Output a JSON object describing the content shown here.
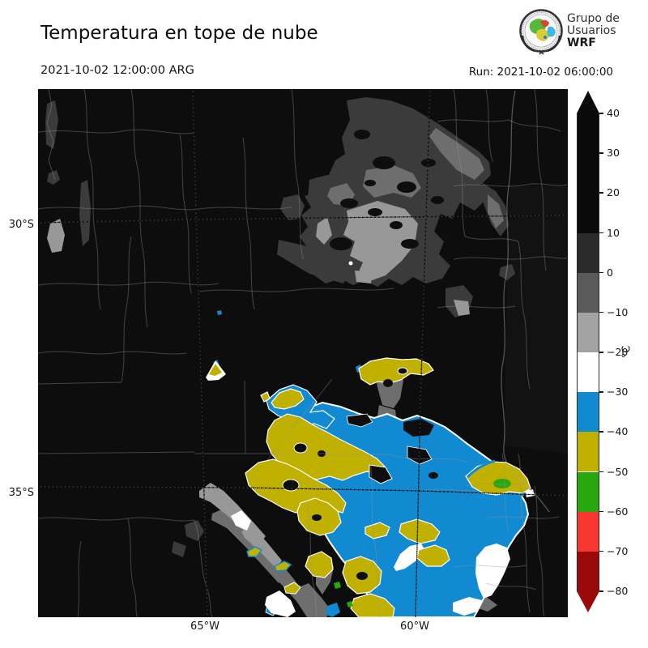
{
  "header": {
    "title": "Temperatura en tope de nube",
    "valid_time": "2021-10-02 12:00:00 ARG",
    "run_label": "Run: 2021-10-02 06:00:00"
  },
  "logo": {
    "line1": "Grupo de",
    "line2": "Usuarios",
    "line3": "WRF"
  },
  "map": {
    "lat_labels": [
      "30°S",
      "35°S"
    ],
    "lon_labels": [
      "65°W",
      "60°W"
    ],
    "background_color": "#0d0d0d",
    "palette": {
      "black_10_to_40": "#0a0a0a",
      "darkgray_0_to_10": "#3b3b3b",
      "midgray_m10_to_0": "#6e6e6e",
      "lightgray_m20_to_m10": "#989898",
      "white_m30_to_m20": "#ffffff",
      "blue_m40_to_m30": "#118ad2",
      "yellow_m50_to_m40": "#c0b000",
      "green_m60_to_m50": "#28a80e",
      "red_m70_to_m60": "#f93730",
      "darkred_m80_to_m70": "#9b0a0a"
    }
  },
  "colorbar": {
    "unit": "°C",
    "max": 40,
    "min": -80,
    "ticks": [
      {
        "value": 40,
        "label": "40"
      },
      {
        "value": 30,
        "label": "30"
      },
      {
        "value": 20,
        "label": "20"
      },
      {
        "value": 10,
        "label": "10"
      },
      {
        "value": 0,
        "label": "0"
      },
      {
        "value": -10,
        "label": "−10"
      },
      {
        "value": -20,
        "label": "−20"
      },
      {
        "value": -30,
        "label": "−30"
      },
      {
        "value": -40,
        "label": "−40"
      },
      {
        "value": -50,
        "label": "−50"
      },
      {
        "value": -60,
        "label": "−60"
      },
      {
        "value": -70,
        "label": "−70"
      },
      {
        "value": -80,
        "label": "−80"
      }
    ],
    "segments": [
      {
        "span": [
          40,
          10
        ],
        "color": "#0a0a0a"
      },
      {
        "span": [
          10,
          0
        ],
        "color": "#2b2b2b"
      },
      {
        "span": [
          0,
          -10
        ],
        "color": "#5a5a5a"
      },
      {
        "span": [
          -10,
          -20
        ],
        "color": "#a2a2a2"
      },
      {
        "span": [
          -20,
          -30
        ],
        "color": "#ffffff"
      },
      {
        "span": [
          -30,
          -40
        ],
        "color": "#118ad2"
      },
      {
        "span": [
          -40,
          -50
        ],
        "color": "#c0b000"
      },
      {
        "span": [
          -50,
          -60
        ],
        "color": "#28a80e"
      },
      {
        "span": [
          -60,
          -70
        ],
        "color": "#f93730"
      },
      {
        "span": [
          -70,
          -80
        ],
        "color": "#9b0a0a"
      }
    ],
    "extend_top_color": "#0a0a0a",
    "extend_bottom_color": "#9b0a0a"
  }
}
